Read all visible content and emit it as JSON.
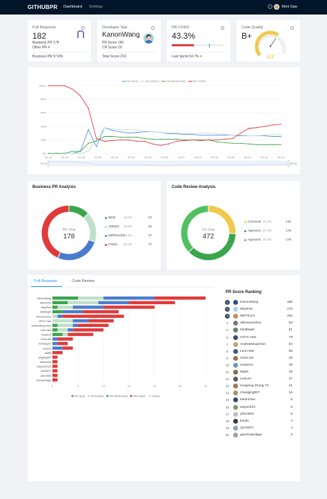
{
  "nav": {
    "logo": "GITHUBPR",
    "items": [
      "Dashboard",
      "Settings"
    ],
    "user": "Kimi Gao"
  },
  "stats": {
    "pr_requests": {
      "title": "Pull Requests",
      "value": "182",
      "line1_label": "Business PR",
      "line1_value": "178",
      "line2_label": "Other PR",
      "line2_value": "4",
      "footer_label": "Business PR",
      "footer_value": "97.8%"
    },
    "developer_star": {
      "title": "Developer Star",
      "name": "KanonWang",
      "pr_label": "PR Score",
      "pr_value": "190",
      "cr_label": "CR Score",
      "cr_value": "29",
      "footer_label": "Total Score",
      "footer_value": "219"
    },
    "pr_fixed": {
      "title": "PR FIXED",
      "value": "43.3%",
      "progress": 0.433,
      "footer_label": "Last Sprint",
      "footer_value": "54.7%"
    },
    "code_quality": {
      "title": "Code Quality",
      "grade": "B+",
      "score": "63",
      "gauge_value": 63
    }
  },
  "trend": {
    "legend": [
      "PR NEW",
      "PR ADDED",
      "PR IMPROVED",
      "PR FIXED"
    ],
    "colors": [
      "#5b8ff9",
      "#bfe0c8",
      "#3aa54b",
      "#e03a3a"
    ],
    "y_ticks": [
      "100%",
      "80%",
      "60%",
      "40%",
      "20%",
      "0%"
    ],
    "x_ticks": [
      "02-14",
      "02-16",
      "02-18",
      "02-20",
      "02-22",
      "02-24",
      "02-26",
      "02-28",
      "03-02",
      "03-04",
      "03-06",
      "03-08",
      "03-10",
      "03-12",
      "03-14"
    ],
    "slider_start": "02-14",
    "slider_end": "03-15"
  },
  "chart_data": [
    {
      "type": "line",
      "title": "",
      "x": [
        "02-14",
        "02-15",
        "02-16",
        "02-17",
        "02-18",
        "02-19",
        "02-20",
        "02-21",
        "02-22",
        "02-23",
        "02-24",
        "02-25",
        "02-26",
        "02-27",
        "02-28",
        "03-01",
        "03-02",
        "03-03",
        "03-04",
        "03-05",
        "03-06",
        "03-07",
        "03-08",
        "03-09",
        "03-10",
        "03-11",
        "03-12",
        "03-13",
        "03-14",
        "03-15"
      ],
      "ylim": [
        0,
        100
      ],
      "ylabel": "",
      "series": [
        {
          "name": "PR NEW",
          "values": [
            0,
            0,
            0,
            0,
            3,
            35,
            10,
            38,
            34,
            32,
            30,
            31,
            32,
            32,
            31,
            29,
            29,
            28,
            28,
            27,
            27,
            27,
            27,
            27,
            26,
            26,
            26,
            26,
            25,
            25
          ]
        },
        {
          "name": "PR ADDED",
          "values": [
            0,
            0,
            0,
            0,
            0,
            3,
            20,
            38,
            36,
            35,
            35,
            35,
            33,
            32,
            31,
            30,
            30,
            29,
            29,
            30,
            30,
            29,
            28,
            27,
            27,
            26,
            26,
            27,
            28,
            27
          ]
        },
        {
          "name": "PR IMPROVED",
          "values": [
            0,
            0,
            0,
            3,
            3,
            15,
            18,
            25,
            25,
            24,
            24,
            24,
            22,
            21,
            21,
            21,
            21,
            20,
            20,
            20,
            20,
            17,
            16,
            15,
            15,
            14,
            13,
            13,
            13,
            13
          ]
        },
        {
          "name": "PR FIXED",
          "values": [
            100,
            100,
            100,
            95,
            85,
            67,
            22,
            18,
            19,
            20,
            20,
            18,
            18,
            14,
            12,
            14,
            18,
            19,
            20,
            19,
            20,
            20,
            21,
            22,
            30,
            37,
            38,
            40,
            42,
            43
          ]
        }
      ]
    },
    {
      "type": "pie",
      "title": "Business PR Analysis",
      "center_label": "PR Total",
      "total": 178,
      "categories": [
        "NEW",
        "ADDED",
        "IMPROVED",
        "FIXED"
      ],
      "values": [
        22,
        32,
        47,
        77
      ],
      "percents": [
        "12.4%",
        "18.0%",
        "26.4%",
        "43.3%"
      ],
      "colors": [
        "#3aa54b",
        "#bfe0c8",
        "#4a7ccd",
        "#e03a3a"
      ]
    },
    {
      "type": "pie",
      "title": "Code Review Analysis",
      "center_label": "CR Total",
      "total": 472,
      "categories": [
        "Comment",
        "Approve1",
        "Approve2"
      ],
      "values": [
        120,
        176,
        176
      ],
      "percents": [
        "25.4%",
        "37.3%",
        "37.3%"
      ],
      "colors": [
        "#f2c84b",
        "#3aa54b",
        "#50c060"
      ]
    },
    {
      "type": "bar",
      "orientation": "horizontal",
      "stacked": true,
      "categories": [
        "KanonWang",
        "08070113",
        "MiyaFan",
        "MyIttlegirl",
        "Vennumshuo",
        "USTC-Han",
        "AndrewMuqChen",
        "Leon-Wei",
        "muwenzi",
        "Chris-Xie",
        "mZhangT3",
        "LeeLee",
        "bai68",
        "jingjing007",
        "tutanchao",
        "wayuan0123",
        "JDAMOY",
        "yth10000",
        "xovhuandage"
      ],
      "xlim": [
        0,
        30
      ],
      "x_ticks": [
        0,
        5,
        10,
        15,
        20,
        25,
        30
      ],
      "legend": [
        "PR NEW",
        "PR ADDED",
        "PR IMPROVED",
        "PR FIXED",
        "Others"
      ],
      "series": [
        {
          "name": "PR NEW",
          "values": [
            5,
            3,
            1,
            2,
            0,
            0,
            1,
            1,
            2,
            0,
            0,
            0,
            0,
            0,
            0,
            0,
            0,
            0,
            0
          ]
        },
        {
          "name": "PR ADDED",
          "values": [
            5,
            6,
            3,
            0,
            1,
            4,
            3,
            2,
            1,
            0,
            0,
            0,
            0,
            0,
            0,
            0,
            0,
            0,
            0
          ]
        },
        {
          "name": "PR IMPROVED",
          "values": [
            10,
            6,
            6,
            4,
            1,
            3,
            1,
            1,
            0,
            1,
            1,
            2,
            0,
            0,
            0,
            0,
            0,
            0,
            0
          ]
        },
        {
          "name": "PR FIXED",
          "values": [
            10,
            9,
            10,
            7,
            12,
            5,
            6,
            6,
            5,
            3,
            2,
            2,
            2,
            1,
            1,
            1,
            1,
            1,
            1
          ]
        },
        {
          "name": "Others",
          "values": [
            0,
            0,
            0,
            0,
            0,
            0,
            0,
            0,
            0,
            0,
            0,
            0,
            0,
            0,
            0,
            0,
            0,
            0,
            0
          ]
        }
      ]
    }
  ],
  "tabs": [
    "Pull Requests",
    "Code Review"
  ],
  "ranking": {
    "title": "PR Score Ranking",
    "rows": [
      {
        "rank": "1",
        "name": "KanonWang",
        "score": "190"
      },
      {
        "rank": "2",
        "name": "MiyaFan",
        "score": "176"
      },
      {
        "rank": "3",
        "name": "08070113",
        "score": "163"
      },
      {
        "rank": "4",
        "name": "allenssunshuo",
        "score": "93"
      },
      {
        "rank": "5",
        "name": "MyIttlegirl",
        "score": "91"
      },
      {
        "rank": "6",
        "name": "USTC-Han",
        "score": "78"
      },
      {
        "rank": "7",
        "name": "AndrewMuqChen",
        "score": "62"
      },
      {
        "rank": "8",
        "name": "Leon-Wei",
        "score": "56"
      },
      {
        "rank": "9",
        "name": "Chris-Xie",
        "score": "40"
      },
      {
        "rank": "10",
        "name": "muwenzi",
        "score": "36"
      },
      {
        "rank": "11",
        "name": "bai68",
        "score": "29"
      },
      {
        "rank": "12",
        "name": "LeeLee",
        "score": "27"
      },
      {
        "rank": "13",
        "name": "Huapeng Zhang T3",
        "score": "21"
      },
      {
        "rank": "14",
        "name": "changjing007",
        "score": "16"
      },
      {
        "rank": "15",
        "name": "tutianchao",
        "score": "8"
      },
      {
        "rank": "16",
        "name": "wayu0123",
        "score": "6"
      },
      {
        "rank": "17",
        "name": "yth10000",
        "score": "6"
      },
      {
        "rank": "18",
        "name": "kavdn",
        "score": "4"
      },
      {
        "rank": "19",
        "name": "JDAMOY",
        "score": "4"
      },
      {
        "rank": "20",
        "name": "ganxhuandage",
        "score": "2"
      }
    ]
  }
}
